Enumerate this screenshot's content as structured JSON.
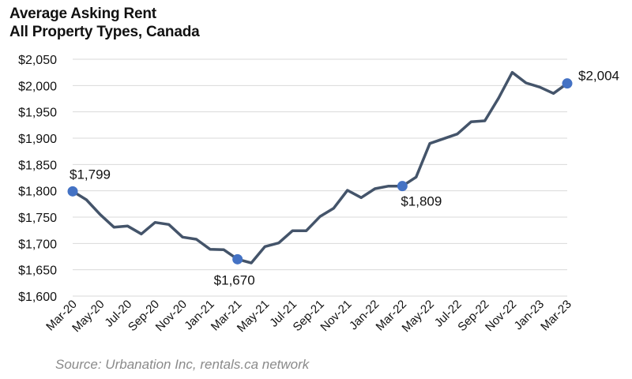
{
  "chart_data": {
    "type": "line",
    "title": "Average Asking Rent",
    "subtitle": "All Property Types, Canada",
    "xlabel": "",
    "ylabel": "",
    "ylim": [
      1600,
      2050
    ],
    "yticks": [
      1600,
      1650,
      1700,
      1750,
      1800,
      1850,
      1900,
      1950,
      2000,
      2050
    ],
    "ytick_labels": [
      "$1,600",
      "$1,650",
      "$1,700",
      "$1,750",
      "$1,800",
      "$1,850",
      "$1,900",
      "$1,950",
      "$2,000",
      "$2,050"
    ],
    "grid": "horizontal",
    "x": [
      "Mar-20",
      "Apr-20",
      "May-20",
      "Jun-20",
      "Jul-20",
      "Aug-20",
      "Sep-20",
      "Oct-20",
      "Nov-20",
      "Dec-20",
      "Jan-21",
      "Feb-21",
      "Mar-21",
      "Apr-21",
      "May-21",
      "Jun-21",
      "Jul-21",
      "Aug-21",
      "Sep-21",
      "Oct-21",
      "Nov-21",
      "Dec-21",
      "Jan-22",
      "Feb-22",
      "Mar-22",
      "Apr-22",
      "May-22",
      "Jun-22",
      "Jul-22",
      "Aug-22",
      "Sep-22",
      "Oct-22",
      "Nov-22",
      "Dec-22",
      "Jan-23",
      "Feb-23",
      "Mar-23"
    ],
    "xtick_labels": [
      "Mar-20",
      "May-20",
      "Jul-20",
      "Sep-20",
      "Nov-20",
      "Jan-21",
      "Mar-21",
      "May-21",
      "Jul-21",
      "Sep-21",
      "Nov-21",
      "Jan-22",
      "Mar-22",
      "May-22",
      "Jul-22",
      "Sep-22",
      "Nov-22",
      "Jan-23",
      "Mar-23"
    ],
    "series": [
      {
        "name": "Average Asking Rent",
        "color": "#44546a",
        "values": [
          1799,
          1783,
          1755,
          1731,
          1733,
          1718,
          1740,
          1736,
          1712,
          1708,
          1689,
          1688,
          1670,
          1663,
          1694,
          1701,
          1724,
          1724,
          1751,
          1767,
          1801,
          1787,
          1804,
          1809,
          1809,
          1826,
          1890,
          1899,
          1908,
          1931,
          1933,
          1976,
          2025,
          2005,
          1997,
          1985,
          2004
        ]
      }
    ],
    "marker_color": "#4472c4",
    "annotations": [
      {
        "x": "Mar-20",
        "value": 1799,
        "label": "$1,799"
      },
      {
        "x": "Mar-21",
        "value": 1670,
        "label": "$1,670"
      },
      {
        "x": "Mar-22",
        "value": 1809,
        "label": "$1,809"
      },
      {
        "x": "Mar-23",
        "value": 2004,
        "label": "$2,004"
      }
    ],
    "source": "Source: Urbanation Inc, rentals.ca network"
  }
}
